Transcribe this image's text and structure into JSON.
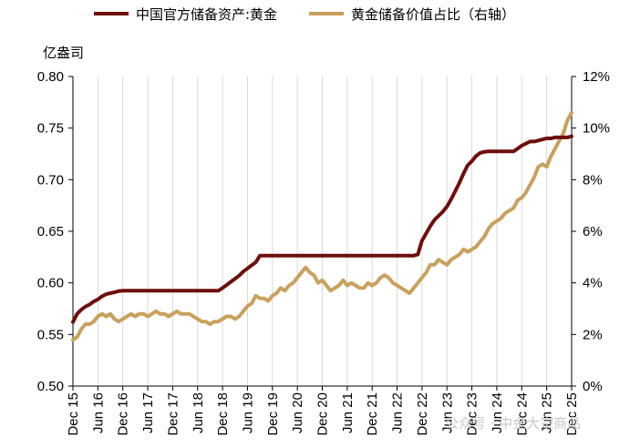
{
  "legend": {
    "gold_reserves": "中国官方储备资产:黄金",
    "gold_share": "黄金储备价值占比（右轴）"
  },
  "left_unit": "亿盎司",
  "watermark": "公众号 · 中金大宗商品",
  "colors": {
    "gold_reserves": "#6e0f0c",
    "gold_share": "#c9a15d",
    "grid": "#d9d9d9",
    "axis": "#000000"
  },
  "chart_data": {
    "type": "line",
    "x_start": "Dec 15",
    "x_end": "Dec 25",
    "x_ticks": [
      "Dec 15",
      "Jun 16",
      "Dec 16",
      "Jun 17",
      "Dec 17",
      "Jun 18",
      "Dec 18",
      "Jun 19",
      "Dec 19",
      "Jun 20",
      "Dec 20",
      "Jun 21",
      "Dec 21",
      "Jun 22",
      "Dec 22",
      "Jun 23",
      "Dec 23",
      "Jun 24",
      "Dec 24",
      "Jun 25",
      "Dec 25"
    ],
    "y_left": {
      "min": 0.5,
      "max": 0.8,
      "step": 0.05,
      "ticks": [
        "0.50",
        "0.55",
        "0.60",
        "0.65",
        "0.70",
        "0.75",
        "0.80"
      ]
    },
    "y_right": {
      "min": 0,
      "max": 12,
      "step": 2,
      "ticks": [
        "0%",
        "2%",
        "4%",
        "6%",
        "8%",
        "10%",
        "12%"
      ]
    },
    "grid": "vertical",
    "legend_position": "top",
    "series": [
      {
        "name": "中国官方储备资产:黄金",
        "axis": "left",
        "x": [
          "2015-12",
          "2016-01",
          "2016-02",
          "2016-03",
          "2016-04",
          "2016-05",
          "2016-06",
          "2016-07",
          "2016-08",
          "2016-09",
          "2016-10",
          "2016-11",
          "2016-12",
          "2018-11",
          "2018-12",
          "2019-01",
          "2019-02",
          "2019-03",
          "2019-04",
          "2019-05",
          "2019-06",
          "2019-07",
          "2019-08",
          "2019-09",
          "2022-10",
          "2022-11",
          "2022-12",
          "2023-01",
          "2023-02",
          "2023-03",
          "2023-04",
          "2023-05",
          "2023-06",
          "2023-07",
          "2023-08",
          "2023-09",
          "2023-10",
          "2023-11",
          "2023-12",
          "2024-01",
          "2024-02",
          "2024-03",
          "2024-04",
          "2024-10",
          "2024-11",
          "2024-12",
          "2025-01",
          "2025-02",
          "2025-03",
          "2025-04",
          "2025-05",
          "2025-06",
          "2025-07",
          "2025-08",
          "2025-09",
          "2025-10",
          "2025-11",
          "2025-12"
        ],
        "values": [
          0.562,
          0.57,
          0.574,
          0.577,
          0.579,
          0.582,
          0.584,
          0.587,
          0.589,
          0.59,
          0.591,
          0.592,
          0.5925,
          0.5925,
          0.595,
          0.598,
          0.601,
          0.604,
          0.607,
          0.611,
          0.614,
          0.617,
          0.62,
          0.6264,
          0.6264,
          0.6275,
          0.641,
          0.648,
          0.655,
          0.661,
          0.665,
          0.669,
          0.674,
          0.681,
          0.689,
          0.697,
          0.706,
          0.714,
          0.718,
          0.723,
          0.726,
          0.727,
          0.7274,
          0.7274,
          0.73,
          0.733,
          0.735,
          0.737,
          0.737,
          0.738,
          0.739,
          0.74,
          0.74,
          0.741,
          0.741,
          0.741,
          0.741,
          0.742
        ]
      },
      {
        "name": "黄金储备价值占比（右轴）",
        "axis": "right",
        "x": [
          "2015-12",
          "2016-01",
          "2016-02",
          "2016-03",
          "2016-04",
          "2016-05",
          "2016-06",
          "2016-07",
          "2016-08",
          "2016-09",
          "2016-10",
          "2016-11",
          "2016-12",
          "2017-01",
          "2017-02",
          "2017-03",
          "2017-04",
          "2017-05",
          "2017-06",
          "2017-07",
          "2017-08",
          "2017-09",
          "2017-10",
          "2017-11",
          "2017-12",
          "2018-01",
          "2018-02",
          "2018-03",
          "2018-04",
          "2018-05",
          "2018-06",
          "2018-07",
          "2018-08",
          "2018-09",
          "2018-10",
          "2018-11",
          "2018-12",
          "2019-01",
          "2019-02",
          "2019-03",
          "2019-04",
          "2019-05",
          "2019-06",
          "2019-07",
          "2019-08",
          "2019-09",
          "2019-10",
          "2019-11",
          "2019-12",
          "2020-01",
          "2020-02",
          "2020-03",
          "2020-04",
          "2020-05",
          "2020-06",
          "2020-07",
          "2020-08",
          "2020-09",
          "2020-10",
          "2020-11",
          "2020-12",
          "2021-01",
          "2021-02",
          "2021-03",
          "2021-04",
          "2021-05",
          "2021-06",
          "2021-07",
          "2021-08",
          "2021-09",
          "2021-10",
          "2021-11",
          "2021-12",
          "2022-01",
          "2022-02",
          "2022-03",
          "2022-04",
          "2022-05",
          "2022-06",
          "2022-07",
          "2022-08",
          "2022-09",
          "2022-10",
          "2022-11",
          "2022-12",
          "2023-01",
          "2023-02",
          "2023-03",
          "2023-04",
          "2023-05",
          "2023-06",
          "2023-07",
          "2023-08",
          "2023-09",
          "2023-10",
          "2023-11",
          "2023-12",
          "2024-01",
          "2024-02",
          "2024-03",
          "2024-04",
          "2024-05",
          "2024-06",
          "2024-07",
          "2024-08",
          "2024-09",
          "2024-10",
          "2024-11",
          "2024-12",
          "2025-01",
          "2025-02",
          "2025-03",
          "2025-04",
          "2025-05",
          "2025-06",
          "2025-07",
          "2025-08",
          "2025-09",
          "2025-10",
          "2025-11",
          "2025-12"
        ],
        "values": [
          1.8,
          1.9,
          2.2,
          2.4,
          2.4,
          2.5,
          2.7,
          2.8,
          2.7,
          2.8,
          2.6,
          2.5,
          2.6,
          2.7,
          2.8,
          2.7,
          2.8,
          2.8,
          2.7,
          2.8,
          2.9,
          2.8,
          2.8,
          2.7,
          2.8,
          2.9,
          2.8,
          2.8,
          2.8,
          2.7,
          2.6,
          2.5,
          2.5,
          2.4,
          2.5,
          2.5,
          2.6,
          2.7,
          2.7,
          2.6,
          2.7,
          2.9,
          3.1,
          3.2,
          3.5,
          3.4,
          3.4,
          3.3,
          3.5,
          3.6,
          3.8,
          3.7,
          3.9,
          4.0,
          4.2,
          4.4,
          4.6,
          4.4,
          4.3,
          4.0,
          4.1,
          3.9,
          3.7,
          3.8,
          3.9,
          4.1,
          3.9,
          4.0,
          3.9,
          3.8,
          3.8,
          4.0,
          3.9,
          4.0,
          4.2,
          4.3,
          4.2,
          4.0,
          3.9,
          3.8,
          3.7,
          3.6,
          3.8,
          4.0,
          4.2,
          4.4,
          4.7,
          4.7,
          4.9,
          4.8,
          4.7,
          4.9,
          5.0,
          5.1,
          5.3,
          5.2,
          5.3,
          5.4,
          5.6,
          5.8,
          6.1,
          6.3,
          6.4,
          6.5,
          6.7,
          6.8,
          6.9,
          7.2,
          7.3,
          7.5,
          7.8,
          8.1,
          8.5,
          8.6,
          8.5,
          8.9,
          9.2,
          9.5,
          9.8,
          10.3,
          10.6
        ]
      }
    ]
  }
}
